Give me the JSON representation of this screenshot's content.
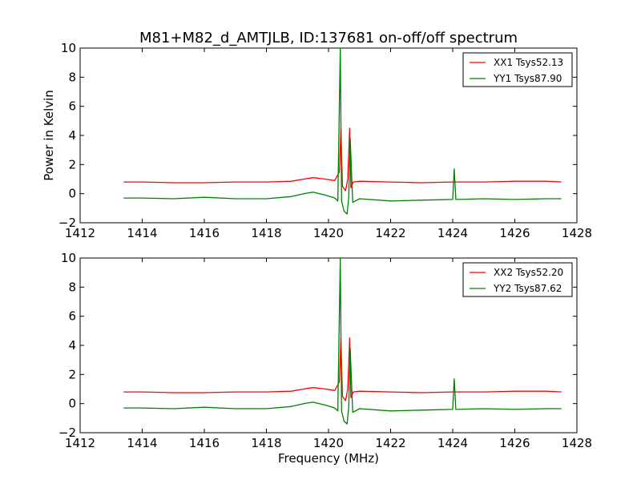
{
  "chart_data": {
    "type": "line",
    "title": "M81+M82_d_AMTJLB, ID:137681 on-off/off spectrum",
    "xlabel": "Frequency (MHz)",
    "ylabel": "Power in Kelvin",
    "xlim": [
      1412,
      1428
    ],
    "ylim": [
      -2,
      10
    ],
    "xticks": [
      "1412",
      "1414",
      "1416",
      "1418",
      "1420",
      "1422",
      "1424",
      "1426",
      "1428"
    ],
    "yticks": [
      "−2",
      "0",
      "2",
      "4",
      "6",
      "8",
      "10"
    ],
    "grid": false,
    "panels": [
      {
        "legend_position": "upper right",
        "series": [
          {
            "name": "XX1 Tsys52.13",
            "color": "#ff0000",
            "x": [
              1413.4,
              1414,
              1415,
              1416,
              1417,
              1418,
              1418.8,
              1419.2,
              1419.5,
              1419.9,
              1420.2,
              1420.35,
              1420.4,
              1420.45,
              1420.55,
              1420.62,
              1420.68,
              1420.72,
              1420.8,
              1421,
              1422,
              1423,
              1424,
              1425,
              1426,
              1427,
              1427.5
            ],
            "y": [
              0.8,
              0.8,
              0.75,
              0.75,
              0.8,
              0.8,
              0.85,
              1.0,
              1.1,
              1.0,
              0.9,
              1.5,
              4.5,
              0.5,
              0.2,
              1.0,
              4.5,
              0.4,
              0.8,
              0.85,
              0.8,
              0.75,
              0.8,
              0.8,
              0.85,
              0.85,
              0.8
            ]
          },
          {
            "name": "YY1 Tsys87.90",
            "color": "#008000",
            "x": [
              1413.4,
              1414,
              1415,
              1416,
              1417,
              1418,
              1418.8,
              1419.2,
              1419.5,
              1419.9,
              1420.2,
              1420.3,
              1420.38,
              1420.42,
              1420.5,
              1420.6,
              1420.65,
              1420.7,
              1420.78,
              1421,
              1422,
              1423,
              1424,
              1424.05,
              1424.1,
              1424.15,
              1425,
              1426,
              1427,
              1427.5
            ],
            "y": [
              -0.3,
              -0.3,
              -0.35,
              -0.25,
              -0.35,
              -0.35,
              -0.2,
              0.0,
              0.1,
              -0.1,
              -0.3,
              -0.5,
              10.0,
              -0.5,
              -1.2,
              -1.4,
              -0.3,
              3.8,
              -0.6,
              -0.35,
              -0.5,
              -0.45,
              -0.4,
              1.7,
              -0.4,
              -0.4,
              -0.35,
              -0.4,
              -0.35,
              -0.35
            ]
          }
        ]
      },
      {
        "legend_position": "upper right",
        "series": [
          {
            "name": "XX2 Tsys52.20",
            "color": "#ff0000",
            "x": [
              1413.4,
              1414,
              1415,
              1416,
              1417,
              1418,
              1418.8,
              1419.2,
              1419.5,
              1419.9,
              1420.2,
              1420.35,
              1420.4,
              1420.45,
              1420.55,
              1420.62,
              1420.68,
              1420.72,
              1420.8,
              1421,
              1422,
              1423,
              1424,
              1425,
              1426,
              1427,
              1427.5
            ],
            "y": [
              0.8,
              0.8,
              0.75,
              0.75,
              0.8,
              0.8,
              0.85,
              1.0,
              1.1,
              1.0,
              0.9,
              1.5,
              4.5,
              0.5,
              0.2,
              1.0,
              4.5,
              0.4,
              0.8,
              0.85,
              0.8,
              0.75,
              0.8,
              0.8,
              0.85,
              0.85,
              0.8
            ]
          },
          {
            "name": "YY2 Tsys87.62",
            "color": "#008000",
            "x": [
              1413.4,
              1414,
              1415,
              1416,
              1417,
              1418,
              1418.8,
              1419.2,
              1419.5,
              1419.9,
              1420.2,
              1420.3,
              1420.38,
              1420.42,
              1420.5,
              1420.6,
              1420.65,
              1420.7,
              1420.78,
              1421,
              1422,
              1423,
              1424,
              1424.05,
              1424.1,
              1424.15,
              1425,
              1426,
              1427,
              1427.5
            ],
            "y": [
              -0.3,
              -0.3,
              -0.35,
              -0.25,
              -0.35,
              -0.35,
              -0.2,
              0.0,
              0.1,
              -0.1,
              -0.3,
              -0.5,
              10.0,
              -0.5,
              -1.2,
              -1.4,
              -0.3,
              3.8,
              -0.6,
              -0.35,
              -0.5,
              -0.45,
              -0.4,
              1.7,
              -0.4,
              -0.4,
              -0.35,
              -0.4,
              -0.35,
              -0.35
            ]
          }
        ]
      }
    ]
  }
}
